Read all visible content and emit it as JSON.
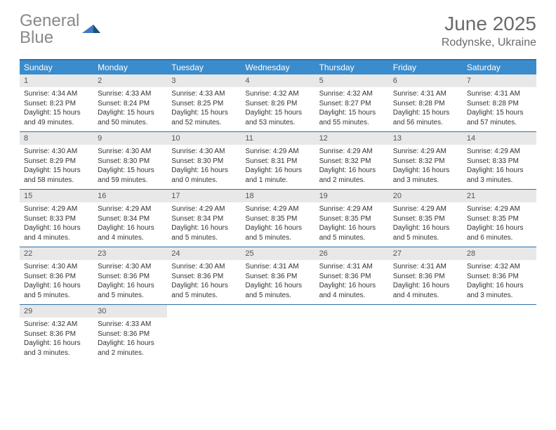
{
  "logo": {
    "word1": "General",
    "word2": "Blue"
  },
  "title": "June 2025",
  "location": "Rodynske, Ukraine",
  "colors": {
    "header_bar": "#3b8ccc",
    "border": "#2f6fa8",
    "daynum_bg": "#e8e8e8",
    "text": "#333333",
    "muted": "#6a6a6a",
    "logo_gray": "#888888",
    "logo_blue": "#3b7bbf"
  },
  "weekdays": [
    "Sunday",
    "Monday",
    "Tuesday",
    "Wednesday",
    "Thursday",
    "Friday",
    "Saturday"
  ],
  "weeks": [
    [
      {
        "n": "1",
        "sr": "4:34 AM",
        "ss": "8:23 PM",
        "dl": "15 hours and 49 minutes."
      },
      {
        "n": "2",
        "sr": "4:33 AM",
        "ss": "8:24 PM",
        "dl": "15 hours and 50 minutes."
      },
      {
        "n": "3",
        "sr": "4:33 AM",
        "ss": "8:25 PM",
        "dl": "15 hours and 52 minutes."
      },
      {
        "n": "4",
        "sr": "4:32 AM",
        "ss": "8:26 PM",
        "dl": "15 hours and 53 minutes."
      },
      {
        "n": "5",
        "sr": "4:32 AM",
        "ss": "8:27 PM",
        "dl": "15 hours and 55 minutes."
      },
      {
        "n": "6",
        "sr": "4:31 AM",
        "ss": "8:28 PM",
        "dl": "15 hours and 56 minutes."
      },
      {
        "n": "7",
        "sr": "4:31 AM",
        "ss": "8:28 PM",
        "dl": "15 hours and 57 minutes."
      }
    ],
    [
      {
        "n": "8",
        "sr": "4:30 AM",
        "ss": "8:29 PM",
        "dl": "15 hours and 58 minutes."
      },
      {
        "n": "9",
        "sr": "4:30 AM",
        "ss": "8:30 PM",
        "dl": "15 hours and 59 minutes."
      },
      {
        "n": "10",
        "sr": "4:30 AM",
        "ss": "8:30 PM",
        "dl": "16 hours and 0 minutes."
      },
      {
        "n": "11",
        "sr": "4:29 AM",
        "ss": "8:31 PM",
        "dl": "16 hours and 1 minute."
      },
      {
        "n": "12",
        "sr": "4:29 AM",
        "ss": "8:32 PM",
        "dl": "16 hours and 2 minutes."
      },
      {
        "n": "13",
        "sr": "4:29 AM",
        "ss": "8:32 PM",
        "dl": "16 hours and 3 minutes."
      },
      {
        "n": "14",
        "sr": "4:29 AM",
        "ss": "8:33 PM",
        "dl": "16 hours and 3 minutes."
      }
    ],
    [
      {
        "n": "15",
        "sr": "4:29 AM",
        "ss": "8:33 PM",
        "dl": "16 hours and 4 minutes."
      },
      {
        "n": "16",
        "sr": "4:29 AM",
        "ss": "8:34 PM",
        "dl": "16 hours and 4 minutes."
      },
      {
        "n": "17",
        "sr": "4:29 AM",
        "ss": "8:34 PM",
        "dl": "16 hours and 5 minutes."
      },
      {
        "n": "18",
        "sr": "4:29 AM",
        "ss": "8:35 PM",
        "dl": "16 hours and 5 minutes."
      },
      {
        "n": "19",
        "sr": "4:29 AM",
        "ss": "8:35 PM",
        "dl": "16 hours and 5 minutes."
      },
      {
        "n": "20",
        "sr": "4:29 AM",
        "ss": "8:35 PM",
        "dl": "16 hours and 5 minutes."
      },
      {
        "n": "21",
        "sr": "4:29 AM",
        "ss": "8:35 PM",
        "dl": "16 hours and 6 minutes."
      }
    ],
    [
      {
        "n": "22",
        "sr": "4:30 AM",
        "ss": "8:36 PM",
        "dl": "16 hours and 5 minutes."
      },
      {
        "n": "23",
        "sr": "4:30 AM",
        "ss": "8:36 PM",
        "dl": "16 hours and 5 minutes."
      },
      {
        "n": "24",
        "sr": "4:30 AM",
        "ss": "8:36 PM",
        "dl": "16 hours and 5 minutes."
      },
      {
        "n": "25",
        "sr": "4:31 AM",
        "ss": "8:36 PM",
        "dl": "16 hours and 5 minutes."
      },
      {
        "n": "26",
        "sr": "4:31 AM",
        "ss": "8:36 PM",
        "dl": "16 hours and 4 minutes."
      },
      {
        "n": "27",
        "sr": "4:31 AM",
        "ss": "8:36 PM",
        "dl": "16 hours and 4 minutes."
      },
      {
        "n": "28",
        "sr": "4:32 AM",
        "ss": "8:36 PM",
        "dl": "16 hours and 3 minutes."
      }
    ],
    [
      {
        "n": "29",
        "sr": "4:32 AM",
        "ss": "8:36 PM",
        "dl": "16 hours and 3 minutes."
      },
      {
        "n": "30",
        "sr": "4:33 AM",
        "ss": "8:36 PM",
        "dl": "16 hours and 2 minutes."
      },
      null,
      null,
      null,
      null,
      null
    ]
  ],
  "labels": {
    "sunrise": "Sunrise:",
    "sunset": "Sunset:",
    "daylight": "Daylight:"
  }
}
